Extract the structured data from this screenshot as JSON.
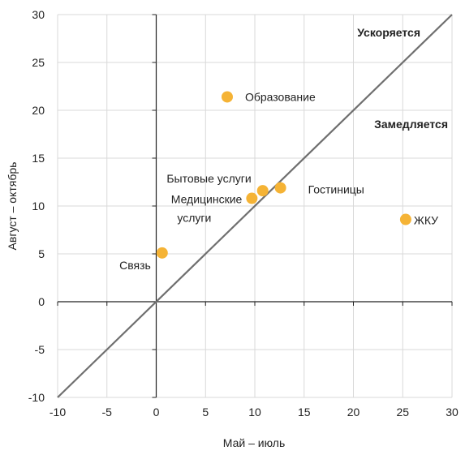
{
  "chart_data": {
    "type": "scatter",
    "xlabel": "Май – июль",
    "ylabel": "Август – октябрь",
    "xlim": [
      -10,
      30
    ],
    "ylim": [
      -10,
      30
    ],
    "xticks": [
      "-10",
      "-5",
      "0",
      "5",
      "10",
      "15",
      "20",
      "25",
      "30"
    ],
    "yticks": [
      "30",
      "25",
      "20",
      "15",
      "10",
      "5",
      "0",
      "-5",
      "-10"
    ],
    "grid": true,
    "diagonal": "y = x",
    "regions": {
      "above": "Ускоряется",
      "below": "Замедляется"
    },
    "points": [
      {
        "label": "Образование",
        "x": 7.2,
        "y": 21.4
      },
      {
        "label": "Бытовые услуги",
        "x": 10.8,
        "y": 11.6
      },
      {
        "label": "Медицинские услуги",
        "x": 9.7,
        "y": 10.8
      },
      {
        "label": "Гостиницы",
        "x": 12.6,
        "y": 11.9
      },
      {
        "label": "ЖКУ",
        "x": 25.3,
        "y": 8.6
      },
      {
        "label": "Связь",
        "x": 0.6,
        "y": 5.1
      }
    ],
    "colors": {
      "marker": "#F5B335",
      "diagonal": "#6f6f6f",
      "grid": "#d9d9d9",
      "axis": "#222222"
    }
  }
}
